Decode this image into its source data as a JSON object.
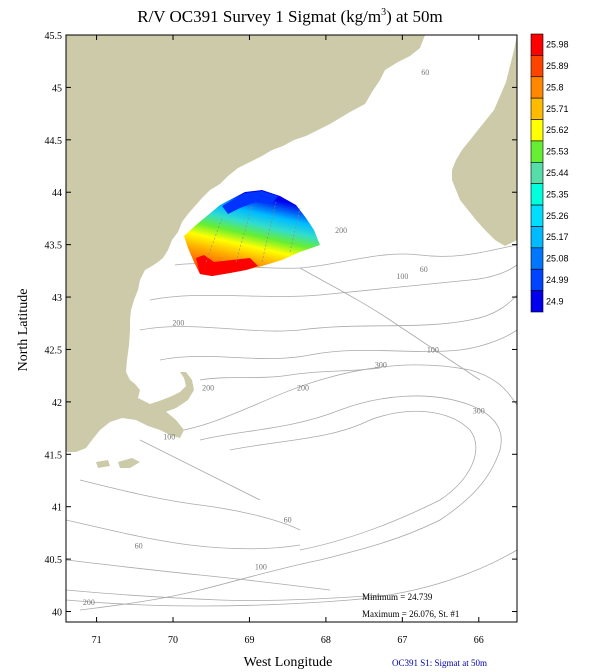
{
  "title": "R/V OC391 Survey 1 Sigmat (kg/m",
  "title_sup": "3",
  "title_suffix": ") at 50m",
  "xlabel": "West Longitude",
  "ylabel": "North Latitude",
  "x_ticks": [
    "71",
    "70",
    "69",
    "68",
    "67",
    "66"
  ],
  "y_ticks": [
    "45.5",
    "45",
    "44.5",
    "44",
    "43.5",
    "43",
    "42.5",
    "42",
    "41.5",
    "41",
    "40.5",
    "40"
  ],
  "colorbar": {
    "labels": [
      "25.98",
      "25.89",
      "25.8",
      "25.71",
      "25.62",
      "25.53",
      "25.44",
      "25.35",
      "25.26",
      "25.17",
      "25.08",
      "24.99",
      "24.9"
    ],
    "colors": [
      "#ff0000",
      "#ff4400",
      "#ff8800",
      "#ffbb00",
      "#ffff00",
      "#66ee33",
      "#55ddaa",
      "#00ffdd",
      "#00ddff",
      "#00bbff",
      "#0077ff",
      "#0044ff",
      "#0000ee"
    ]
  },
  "isobaths": [
    {
      "label": "60",
      "lon": 66.7,
      "lat": 45.12
    },
    {
      "label": "200",
      "lon": 67.8,
      "lat": 43.61
    },
    {
      "label": "100",
      "lon": 67.0,
      "lat": 43.17
    },
    {
      "label": "60",
      "lon": 66.72,
      "lat": 43.24
    },
    {
      "label": "200",
      "lon": 69.93,
      "lat": 42.73
    },
    {
      "label": "300",
      "lon": 67.28,
      "lat": 42.33
    },
    {
      "label": "100",
      "lon": 66.6,
      "lat": 42.47
    },
    {
      "label": "200",
      "lon": 69.54,
      "lat": 42.11
    },
    {
      "label": "200",
      "lon": 68.3,
      "lat": 42.11
    },
    {
      "label": "300",
      "lon": 66.0,
      "lat": 41.89
    },
    {
      "label": "100",
      "lon": 70.05,
      "lat": 41.64
    },
    {
      "label": "60",
      "lon": 68.5,
      "lat": 40.85
    },
    {
      "label": "60",
      "lon": 70.45,
      "lat": 40.6
    },
    {
      "label": "100",
      "lon": 68.85,
      "lat": 40.4
    },
    {
      "label": "200",
      "lon": 71.1,
      "lat": 40.06
    }
  ],
  "stats": {
    "minimum": "Minimum = 24.739",
    "maximum": "Maximum = 26.076, St. #1"
  },
  "caption": "OC391 S1: Sigmat at 50m",
  "chart_data": {
    "type": "heatmap",
    "title": "R/V OC391 Survey 1 Sigmat (kg/m3) at 50m",
    "xlabel": "West Longitude",
    "ylabel": "North Latitude",
    "xlim": [
      71.4,
      65.5
    ],
    "ylim": [
      39.9,
      45.5
    ],
    "colorbar_range": [
      24.9,
      25.98
    ],
    "minimum": 24.739,
    "maximum": 26.076,
    "land_color": "#cccaa8",
    "survey_region_lon": [
      69.0,
      68.0
    ],
    "survey_region_lat": [
      43.2,
      43.97
    ]
  }
}
